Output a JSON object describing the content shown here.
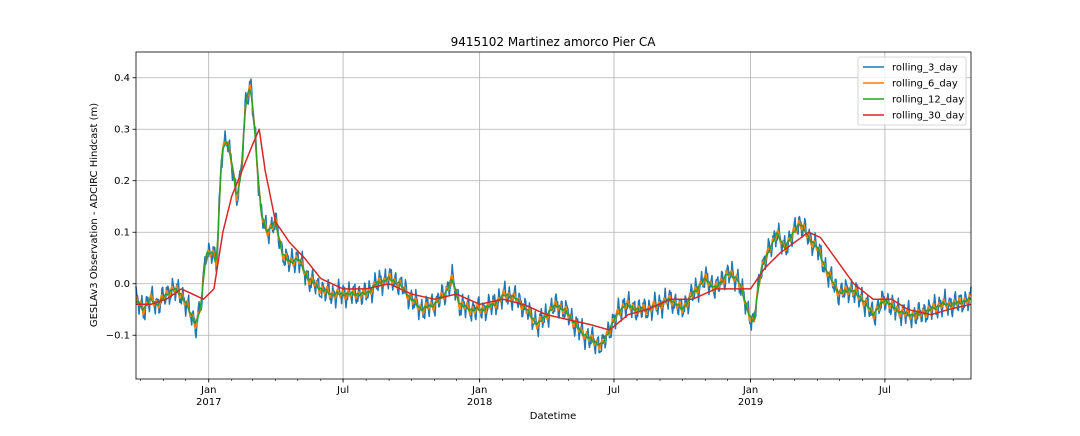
{
  "chart_data": {
    "type": "line",
    "title": "9415102 Martinez amorco Pier CA",
    "xlabel": "Datetime",
    "ylabel": "GESLAv3 Observation - ADCIRC Hindcast (m)",
    "x_range": [
      "2016-09-25",
      "2019-10-25"
    ],
    "ylim": [
      -0.185,
      0.45
    ],
    "grid": true,
    "legend_position": "top-right",
    "x_ticks": [
      {
        "date": "2017-01-01",
        "label": "Jan",
        "year": "2017"
      },
      {
        "date": "2017-07-01",
        "label": "Jul",
        "year": ""
      },
      {
        "date": "2018-01-01",
        "label": "Jan",
        "year": "2018"
      },
      {
        "date": "2018-07-01",
        "label": "Jul",
        "year": ""
      },
      {
        "date": "2019-01-01",
        "label": "Jan",
        "year": "2019"
      },
      {
        "date": "2019-07-01",
        "label": "Jul",
        "year": ""
      }
    ],
    "y_ticks": [
      -0.1,
      0.0,
      0.1,
      0.2,
      0.3,
      0.4
    ],
    "y_tick_labels": [
      "−0.1",
      "0.0",
      "0.1",
      "0.2",
      "0.3",
      "0.4"
    ],
    "series": [
      {
        "name": "rolling_3_day",
        "color": "#1f77b4"
      },
      {
        "name": "rolling_6_day",
        "color": "#ff7f0e"
      },
      {
        "name": "rolling_12_day",
        "color": "#2ca02c"
      },
      {
        "name": "rolling_30_day",
        "color": "#d62728"
      }
    ],
    "base_points": [
      [
        "2016-09-25",
        -0.03
      ],
      [
        "2016-10-05",
        -0.05
      ],
      [
        "2016-10-15",
        -0.03
      ],
      [
        "2016-10-25",
        -0.04
      ],
      [
        "2016-11-05",
        -0.02
      ],
      [
        "2016-11-15",
        -0.01
      ],
      [
        "2016-11-25",
        -0.02
      ],
      [
        "2016-12-05",
        -0.05
      ],
      [
        "2016-12-15",
        -0.08
      ],
      [
        "2016-12-22",
        -0.04
      ],
      [
        "2016-12-28",
        0.06
      ],
      [
        "2017-01-05",
        0.06
      ],
      [
        "2017-01-12",
        0.04
      ],
      [
        "2017-01-18",
        0.25
      ],
      [
        "2017-01-25",
        0.28
      ],
      [
        "2017-02-01",
        0.24
      ],
      [
        "2017-02-08",
        0.16
      ],
      [
        "2017-02-14",
        0.22
      ],
      [
        "2017-02-20",
        0.36
      ],
      [
        "2017-02-27",
        0.38
      ],
      [
        "2017-03-05",
        0.28
      ],
      [
        "2017-03-12",
        0.14
      ],
      [
        "2017-03-20",
        0.1
      ],
      [
        "2017-04-01",
        0.12
      ],
      [
        "2017-04-10",
        0.06
      ],
      [
        "2017-04-20",
        0.04
      ],
      [
        "2017-05-01",
        0.05
      ],
      [
        "2017-05-15",
        0.01
      ],
      [
        "2017-06-01",
        -0.01
      ],
      [
        "2017-06-15",
        -0.02
      ],
      [
        "2017-07-01",
        -0.02
      ],
      [
        "2017-07-15",
        -0.02
      ],
      [
        "2017-08-01",
        -0.02
      ],
      [
        "2017-08-15",
        0.0
      ],
      [
        "2017-09-01",
        0.01
      ],
      [
        "2017-09-15",
        0.0
      ],
      [
        "2017-10-01",
        -0.03
      ],
      [
        "2017-10-15",
        -0.05
      ],
      [
        "2017-11-01",
        -0.04
      ],
      [
        "2017-11-15",
        -0.02
      ],
      [
        "2017-11-25",
        0.01
      ],
      [
        "2017-12-05",
        -0.04
      ],
      [
        "2017-12-20",
        -0.05
      ],
      [
        "2018-01-05",
        -0.05
      ],
      [
        "2018-01-20",
        -0.04
      ],
      [
        "2018-02-05",
        -0.02
      ],
      [
        "2018-02-20",
        -0.03
      ],
      [
        "2018-03-05",
        -0.05
      ],
      [
        "2018-03-20",
        -0.08
      ],
      [
        "2018-04-01",
        -0.06
      ],
      [
        "2018-04-15",
        -0.04
      ],
      [
        "2018-05-01",
        -0.06
      ],
      [
        "2018-05-15",
        -0.09
      ],
      [
        "2018-06-01",
        -0.11
      ],
      [
        "2018-06-15",
        -0.12
      ],
      [
        "2018-07-01",
        -0.07
      ],
      [
        "2018-07-15",
        -0.04
      ],
      [
        "2018-08-01",
        -0.05
      ],
      [
        "2018-08-15",
        -0.05
      ],
      [
        "2018-09-01",
        -0.04
      ],
      [
        "2018-09-15",
        -0.03
      ],
      [
        "2018-10-01",
        -0.05
      ],
      [
        "2018-10-15",
        -0.02
      ],
      [
        "2018-11-01",
        0.01
      ],
      [
        "2018-11-15",
        -0.01
      ],
      [
        "2018-12-01",
        0.02
      ],
      [
        "2018-12-15",
        0.01
      ],
      [
        "2018-12-28",
        -0.05
      ],
      [
        "2019-01-05",
        -0.08
      ],
      [
        "2019-01-15",
        0.03
      ],
      [
        "2019-01-25",
        0.06
      ],
      [
        "2019-02-05",
        0.1
      ],
      [
        "2019-02-15",
        0.07
      ],
      [
        "2019-02-25",
        0.09
      ],
      [
        "2019-03-08",
        0.12
      ],
      [
        "2019-03-20",
        0.09
      ],
      [
        "2019-04-01",
        0.07
      ],
      [
        "2019-04-15",
        0.02
      ],
      [
        "2019-05-01",
        -0.02
      ],
      [
        "2019-05-15",
        -0.01
      ],
      [
        "2019-06-01",
        -0.03
      ],
      [
        "2019-06-15",
        -0.06
      ],
      [
        "2019-07-01",
        -0.03
      ],
      [
        "2019-07-15",
        -0.05
      ],
      [
        "2019-08-01",
        -0.06
      ],
      [
        "2019-08-15",
        -0.06
      ],
      [
        "2019-09-01",
        -0.05
      ],
      [
        "2019-09-15",
        -0.04
      ],
      [
        "2019-10-01",
        -0.04
      ],
      [
        "2019-10-25",
        -0.03
      ]
    ],
    "rolling_30_day_points": [
      [
        "2016-09-25",
        -0.04
      ],
      [
        "2016-10-15",
        -0.04
      ],
      [
        "2016-11-05",
        -0.03
      ],
      [
        "2016-11-25",
        -0.01
      ],
      [
        "2016-12-10",
        -0.02
      ],
      [
        "2016-12-25",
        -0.03
      ],
      [
        "2017-01-08",
        -0.01
      ],
      [
        "2017-01-20",
        0.1
      ],
      [
        "2017-02-01",
        0.17
      ],
      [
        "2017-02-15",
        0.22
      ],
      [
        "2017-03-01",
        0.27
      ],
      [
        "2017-03-10",
        0.3
      ],
      [
        "2017-03-18",
        0.22
      ],
      [
        "2017-04-01",
        0.12
      ],
      [
        "2017-04-20",
        0.08
      ],
      [
        "2017-05-10",
        0.05
      ],
      [
        "2017-06-01",
        0.01
      ],
      [
        "2017-07-01",
        -0.01
      ],
      [
        "2017-08-01",
        -0.01
      ],
      [
        "2017-09-01",
        0.0
      ],
      [
        "2017-10-01",
        -0.02
      ],
      [
        "2017-11-01",
        -0.03
      ],
      [
        "2017-12-01",
        -0.02
      ],
      [
        "2018-01-01",
        -0.04
      ],
      [
        "2018-02-01",
        -0.03
      ],
      [
        "2018-03-01",
        -0.04
      ],
      [
        "2018-04-01",
        -0.06
      ],
      [
        "2018-05-01",
        -0.07
      ],
      [
        "2018-06-01",
        -0.08
      ],
      [
        "2018-06-25",
        -0.09
      ],
      [
        "2018-07-20",
        -0.06
      ],
      [
        "2018-08-15",
        -0.05
      ],
      [
        "2018-09-15",
        -0.03
      ],
      [
        "2018-10-15",
        -0.03
      ],
      [
        "2018-11-15",
        -0.01
      ],
      [
        "2018-12-10",
        -0.01
      ],
      [
        "2019-01-01",
        -0.01
      ],
      [
        "2019-01-20",
        0.03
      ],
      [
        "2019-02-10",
        0.06
      ],
      [
        "2019-03-01",
        0.08
      ],
      [
        "2019-03-20",
        0.1
      ],
      [
        "2019-04-05",
        0.09
      ],
      [
        "2019-04-25",
        0.05
      ],
      [
        "2019-05-20",
        0.0
      ],
      [
        "2019-06-15",
        -0.03
      ],
      [
        "2019-07-10",
        -0.03
      ],
      [
        "2019-08-01",
        -0.05
      ],
      [
        "2019-09-01",
        -0.06
      ],
      [
        "2019-09-25",
        -0.05
      ],
      [
        "2019-10-25",
        -0.04
      ]
    ],
    "noise_amplitude": {
      "rolling_3_day": 0.03,
      "rolling_6_day": 0.02,
      "rolling_12_day": 0.012
    }
  }
}
